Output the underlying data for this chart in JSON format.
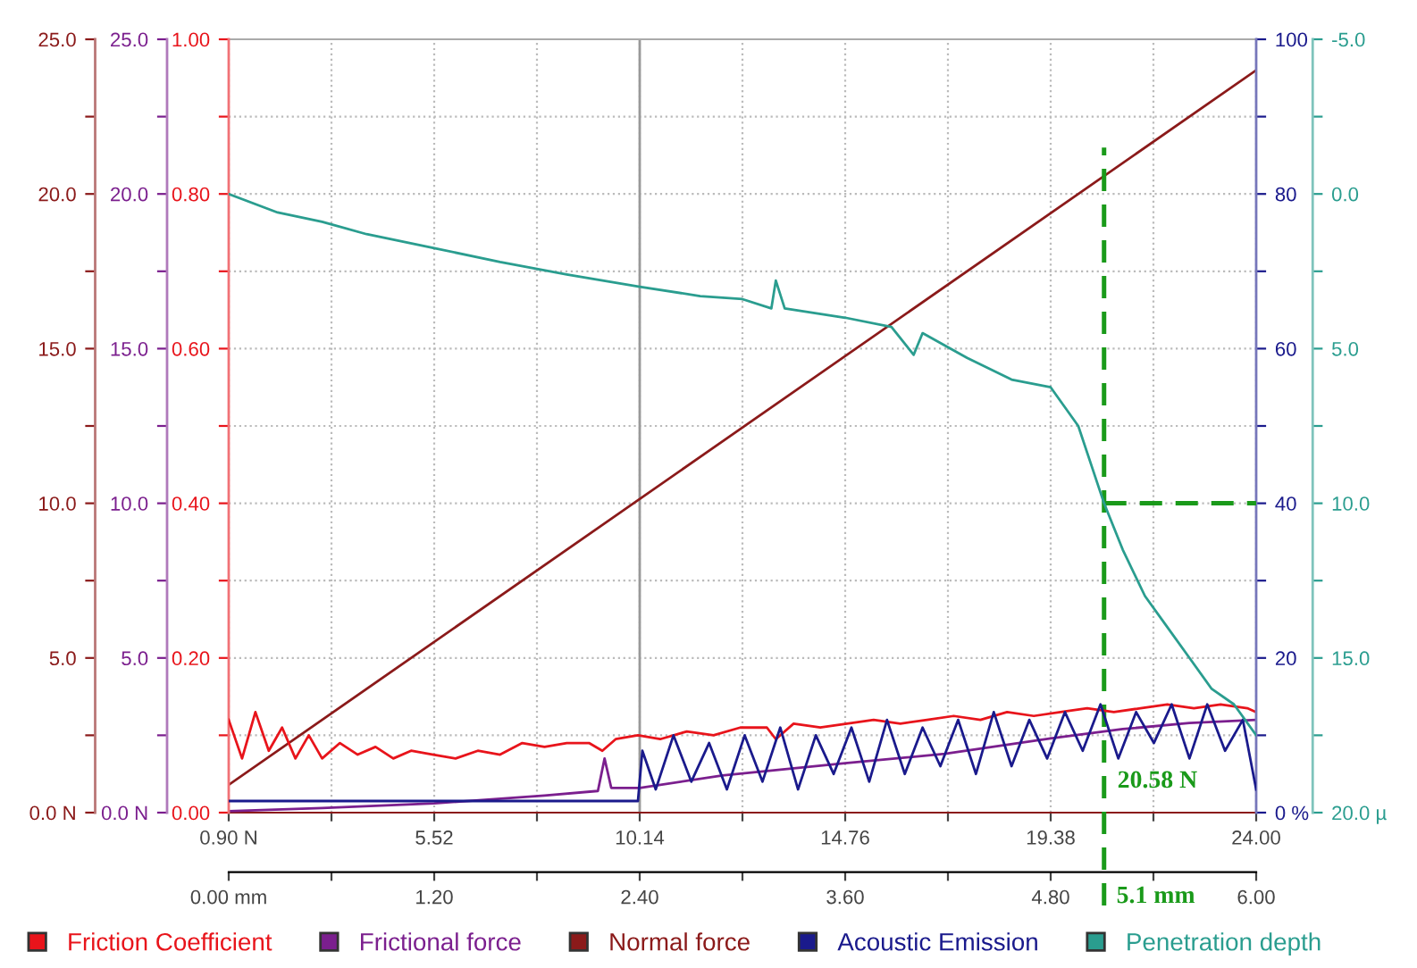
{
  "chart_data": [
    {
      "type": "line",
      "xlim": [
        0.9,
        24.0
      ],
      "xticks": [
        {
          "value": 0.9,
          "label": "0.90 N"
        },
        {
          "value": 3.21,
          "label": null
        },
        {
          "value": 5.52,
          "label": "5.52"
        },
        {
          "value": 7.83,
          "label": null
        },
        {
          "value": 10.14,
          "label": "10.14"
        },
        {
          "value": 12.45,
          "label": null
        },
        {
          "value": 14.76,
          "label": "14.76"
        },
        {
          "value": 17.07,
          "label": null
        },
        {
          "value": 19.38,
          "label": "19.38"
        },
        {
          "value": 21.69,
          "label": null
        },
        {
          "value": 24.0,
          "label": "24.00"
        }
      ],
      "x2lim": [
        0.0,
        6.0
      ],
      "x2ticks": [
        {
          "value": 0.0,
          "label": "0.00 mm"
        },
        {
          "value": 0.6,
          "label": null
        },
        {
          "value": 1.2,
          "label": "1.20"
        },
        {
          "value": 1.8,
          "label": null
        },
        {
          "value": 2.4,
          "label": "2.40"
        },
        {
          "value": 3.0,
          "label": null
        },
        {
          "value": 3.6,
          "label": "3.60"
        },
        {
          "value": 4.2,
          "label": null
        },
        {
          "value": 4.8,
          "label": "4.80"
        },
        {
          "value": 5.4,
          "label": null
        },
        {
          "value": 6.0,
          "label": "6.00"
        }
      ],
      "ylim": [
        0.0,
        25.0
      ],
      "yticks": [
        {
          "value": 0.0,
          "label": "0.0 N"
        },
        {
          "value": 2.5,
          "label": null
        },
        {
          "value": 5.0,
          "label": "5.0"
        },
        {
          "value": 7.5,
          "label": null
        },
        {
          "value": 10.0,
          "label": "10.0"
        },
        {
          "value": 12.5,
          "label": null
        },
        {
          "value": 15.0,
          "label": "15.0"
        },
        {
          "value": 17.5,
          "label": null
        },
        {
          "value": 20.0,
          "label": "20.0"
        },
        {
          "value": 22.5,
          "label": null
        },
        {
          "value": 25.0,
          "label": "25.0"
        }
      ],
      "y2lim": [
        0.0,
        1.0
      ],
      "y2ticks": [
        {
          "value": 0.0,
          "label": "0.00"
        },
        {
          "value": 0.1,
          "label": null
        },
        {
          "value": 0.2,
          "label": "0.20"
        },
        {
          "value": 0.3,
          "label": null
        },
        {
          "value": 0.4,
          "label": "0.40"
        },
        {
          "value": 0.5,
          "label": null
        },
        {
          "value": 0.6,
          "label": "0.60"
        },
        {
          "value": 0.7,
          "label": null
        },
        {
          "value": 0.8,
          "label": "0.80"
        },
        {
          "value": 0.9,
          "label": null
        },
        {
          "value": 1.0,
          "label": "1.00"
        }
      ],
      "y3lim": [
        0,
        100
      ],
      "y3ticks": [
        {
          "value": 0,
          "label": "0 %"
        },
        {
          "value": 10,
          "label": null
        },
        20,
        {
          "value": 30,
          "label": null
        },
        40,
        {
          "value": 50,
          "label": null
        },
        60,
        {
          "value": 70,
          "label": null
        },
        80,
        {
          "value": 90,
          "label": null
        },
        100
      ],
      "grid": true,
      "legend": "bottom",
      "series": [
        {
          "name": "Friction Coefficient",
          "color": "#e8141b",
          "axis": "y2",
          "x": [
            0.9,
            1.2,
            1.5,
            1.8,
            2.1,
            2.4,
            2.7,
            3.0,
            3.4,
            3.8,
            4.2,
            4.6,
            5.0,
            5.5,
            6.0,
            6.5,
            7.0,
            7.5,
            8.0,
            8.5,
            9.0,
            9.3,
            9.6,
            10.1,
            10.6,
            11.2,
            11.8,
            12.4,
            13.0,
            13.2,
            13.6,
            14.2,
            14.8,
            15.4,
            16.0,
            16.6,
            17.2,
            17.8,
            18.4,
            19.0,
            19.6,
            20.2,
            20.8,
            21.4,
            22.0,
            22.6,
            23.2,
            23.8,
            24.0
          ],
          "values": [
            0.12,
            0.07,
            0.13,
            0.08,
            0.11,
            0.07,
            0.1,
            0.07,
            0.09,
            0.075,
            0.085,
            0.07,
            0.08,
            0.075,
            0.07,
            0.08,
            0.075,
            0.09,
            0.085,
            0.09,
            0.09,
            0.08,
            0.095,
            0.1,
            0.095,
            0.105,
            0.1,
            0.11,
            0.11,
            0.095,
            0.115,
            0.11,
            0.115,
            0.12,
            0.115,
            0.12,
            0.125,
            0.12,
            0.13,
            0.125,
            0.13,
            0.135,
            0.13,
            0.135,
            0.14,
            0.135,
            0.14,
            0.135,
            0.13
          ]
        },
        {
          "name": "Frictional force",
          "color": "#7b1f8e",
          "x": [
            0.9,
            3.0,
            5.52,
            8.0,
            9.2,
            9.35,
            9.5,
            10.14,
            12.0,
            14.76,
            17.0,
            19.38,
            21.0,
            22.5,
            24.0
          ],
          "values": [
            0.05,
            0.15,
            0.3,
            0.55,
            0.7,
            1.75,
            0.8,
            0.8,
            1.2,
            1.6,
            1.9,
            2.4,
            2.7,
            2.9,
            3.0
          ]
        },
        {
          "name": "Normal force",
          "color": "#8b1a1a",
          "x": [
            0.9,
            24.0
          ],
          "values": [
            0.9,
            24.0
          ]
        },
        {
          "name": "Acoustic Emission",
          "color": "#1a1a8c",
          "axis": "y3",
          "x": [
            0.9,
            10.1,
            10.2,
            10.5,
            10.9,
            11.3,
            11.7,
            12.1,
            12.5,
            12.9,
            13.3,
            13.7,
            14.1,
            14.5,
            14.9,
            15.3,
            15.7,
            16.1,
            16.5,
            16.9,
            17.3,
            17.7,
            18.1,
            18.5,
            18.9,
            19.3,
            19.7,
            20.1,
            20.5,
            20.9,
            21.3,
            21.7,
            22.1,
            22.5,
            22.9,
            23.3,
            23.7,
            24.0
          ],
          "values": [
            1.5,
            1.5,
            8,
            3,
            10,
            4,
            9,
            3,
            10,
            4,
            11,
            3,
            10,
            5,
            11,
            4,
            12,
            5,
            11,
            6,
            12,
            5,
            13,
            6,
            12,
            7,
            13,
            8,
            14,
            7,
            13,
            9,
            14,
            7,
            14,
            8,
            12,
            3
          ]
        }
      ],
      "ref_lines": [
        {
          "axis": "x",
          "value": 10.14,
          "color": "#999999",
          "line_style": "solid"
        },
        {
          "axis": "x",
          "value": 20.58,
          "color": "#1a9a1a",
          "line_style": "dashed"
        },
        {
          "axis": "y3",
          "value": 40,
          "color": "#1a9a1a",
          "line_style": "dashed"
        }
      ],
      "annotations": [
        {
          "text": "20.58 N",
          "x": 20.58,
          "y": 1.0
        },
        "5.1 mm"
      ]
    },
    {
      "type": "line",
      "xlim": [
        0.9,
        24.0
      ],
      "ylim": [
        20.0,
        -5.0
      ],
      "yticks": [
        {
          "value": 20.0,
          "label": "20.0 µ"
        },
        {
          "value": 17.5,
          "label": null
        },
        {
          "value": 15.0,
          "label": "15.0"
        },
        {
          "value": 12.5,
          "label": null
        },
        {
          "value": 10.0,
          "label": "10.0"
        },
        {
          "value": 7.5,
          "label": null
        },
        {
          "value": 5.0,
          "label": "5.0"
        },
        {
          "value": 2.5,
          "label": null
        },
        {
          "value": 0.0,
          "label": "0.0"
        },
        {
          "value": -2.5,
          "label": null
        },
        {
          "value": -5.0,
          "label": "-5.0"
        }
      ],
      "tick_labels": "y",
      "legend": "bottom",
      "series": [
        {
          "name": "Penetration depth",
          "color": "#2a9d8f",
          "x": [
            0.9,
            2.0,
            3.0,
            4.0,
            5.52,
            7.0,
            8.5,
            10.14,
            11.5,
            12.45,
            13.1,
            13.2,
            13.4,
            14.76,
            15.8,
            16.3,
            16.5,
            17.5,
            18.5,
            19.38,
            20.0,
            20.58,
            21.0,
            21.5,
            22.0,
            22.5,
            23.0,
            23.5,
            24.0
          ],
          "values": [
            0.0,
            0.6,
            0.9,
            1.3,
            1.75,
            2.2,
            2.6,
            3.0,
            3.3,
            3.4,
            3.7,
            2.8,
            3.7,
            4.0,
            4.3,
            5.2,
            4.5,
            5.3,
            6.0,
            6.25,
            7.5,
            10.0,
            11.5,
            13.0,
            14.0,
            15.0,
            16.0,
            16.5,
            17.5
          ]
        }
      ]
    }
  ]
}
